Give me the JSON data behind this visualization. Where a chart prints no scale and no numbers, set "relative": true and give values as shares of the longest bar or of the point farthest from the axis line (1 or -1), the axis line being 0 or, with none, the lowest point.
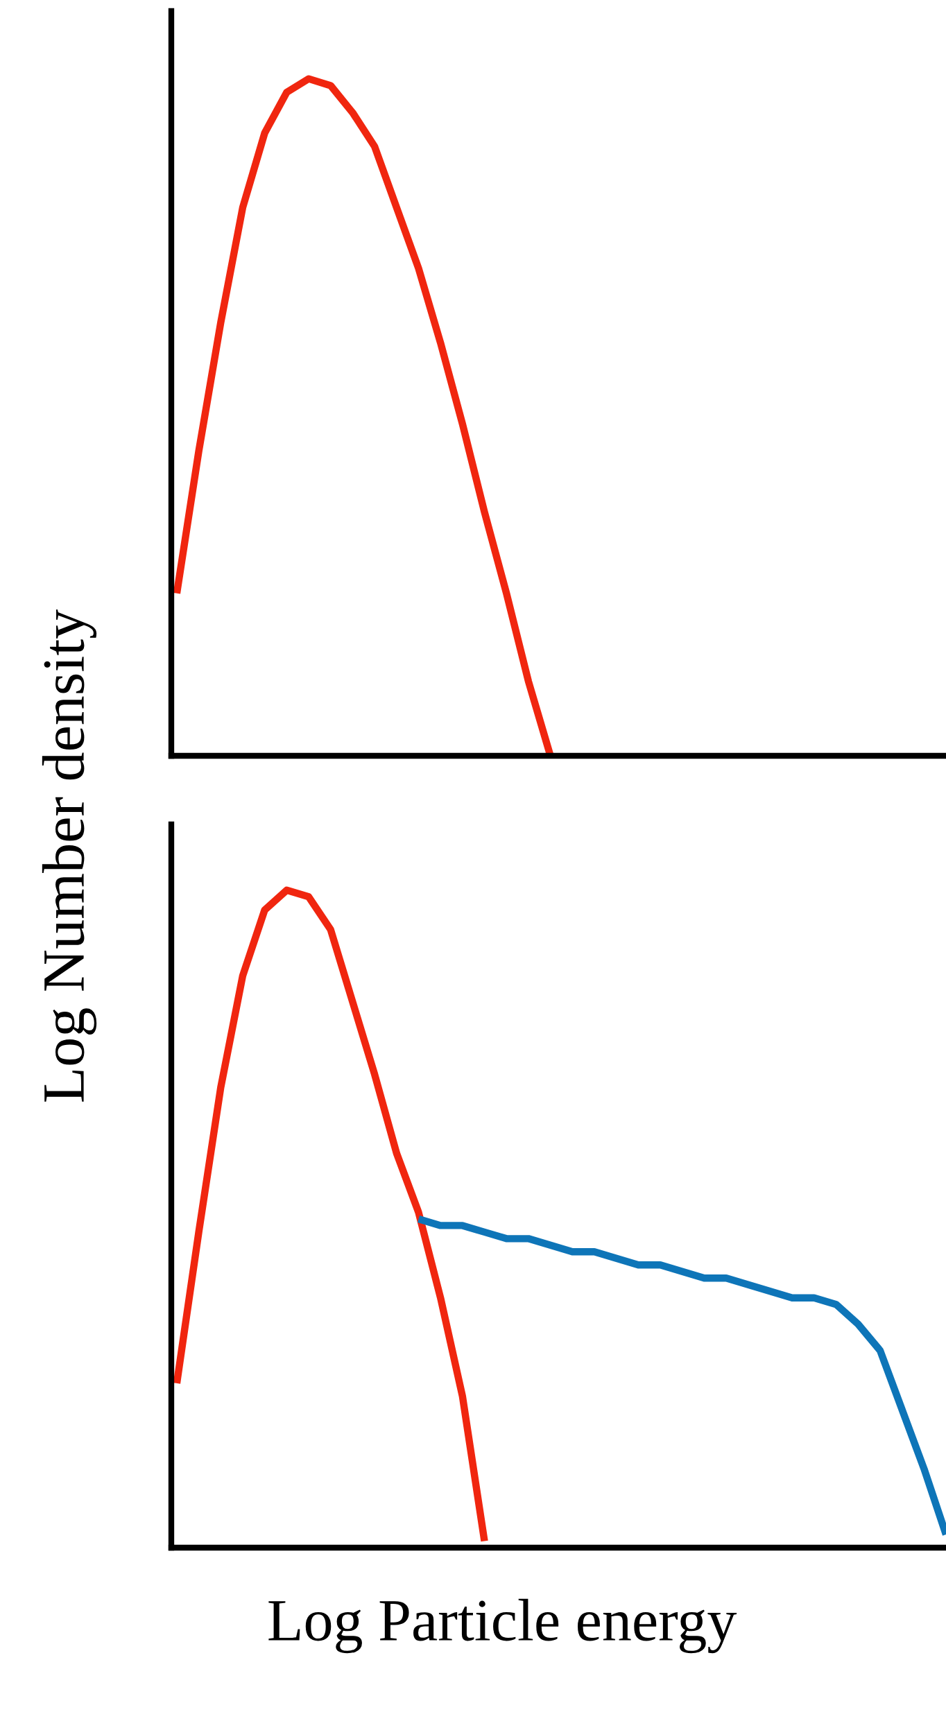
{
  "chart_data": [
    {
      "type": "line",
      "relative": true,
      "ylabel": "Log Number density",
      "categories": [
        null,
        null,
        null,
        null,
        null,
        null,
        null,
        null,
        null,
        null,
        null,
        null,
        null,
        null,
        null,
        null,
        null,
        null,
        null,
        null,
        null,
        null,
        null,
        null,
        null,
        null,
        null,
        null,
        null,
        null,
        null,
        null,
        null,
        null,
        null,
        null
      ],
      "series": [
        {
          "color": "#f0260f",
          "values": [
            0.24,
            0.45,
            0.64,
            0.81,
            0.92,
            0.98,
            1.0,
            0.99,
            0.95,
            0.9,
            0.81,
            0.72,
            0.61,
            0.49,
            0.36,
            0.24,
            0.11,
            0.0,
            null,
            null,
            null,
            null,
            null,
            null,
            null,
            null,
            null,
            null,
            null,
            null,
            null,
            null,
            null,
            null,
            null,
            null
          ]
        }
      ],
      "marker": "none",
      "line_style": "solid"
    },
    {
      "type": "line",
      "relative": true,
      "xlabel": "Log Particle energy",
      "categories": [
        null,
        null,
        null,
        null,
        null,
        null,
        null,
        null,
        null,
        null,
        null,
        null,
        null,
        null,
        null,
        null,
        null,
        null,
        null,
        null,
        null,
        null,
        null,
        null,
        null,
        null,
        null,
        null,
        null,
        null,
        null,
        null,
        null,
        null,
        null,
        null
      ],
      "series": [
        {
          "color": "#f0260f",
          "values": [
            0.25,
            0.48,
            0.7,
            0.87,
            0.97,
            1.0,
            0.99,
            0.94,
            0.83,
            0.72,
            0.6,
            0.51,
            0.38,
            0.23,
            0.01,
            null,
            null,
            null,
            null,
            null,
            null,
            null,
            null,
            null,
            null,
            null,
            null,
            null,
            null,
            null,
            null,
            null,
            null,
            null,
            null,
            null
          ]
        },
        {
          "color": "#0e75b8",
          "values": [
            null,
            null,
            null,
            null,
            null,
            null,
            null,
            null,
            null,
            null,
            null,
            0.5,
            0.49,
            0.49,
            0.48,
            0.47,
            0.47,
            0.46,
            0.45,
            0.45,
            0.44,
            0.43,
            0.43,
            0.42,
            0.41,
            0.41,
            0.4,
            0.39,
            0.38,
            0.38,
            0.37,
            0.34,
            0.3,
            0.21,
            0.12,
            0.02
          ]
        }
      ],
      "marker": "none",
      "line_style": "solid"
    }
  ]
}
